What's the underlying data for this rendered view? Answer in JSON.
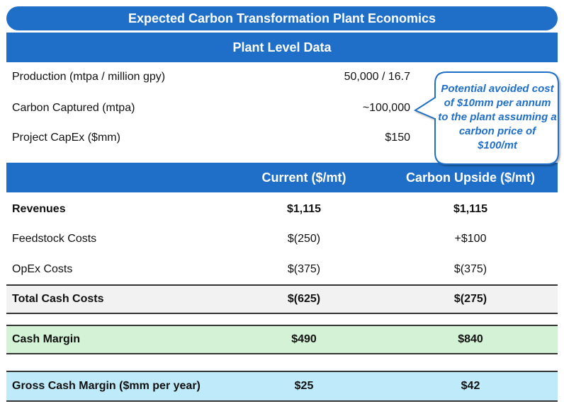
{
  "title": "Expected Carbon Transformation Plant Economics",
  "plant_section": {
    "header": "Plant Level Data",
    "rows": [
      {
        "label": "Production (mtpa / million gpy)",
        "value": "50,000 / 16.7"
      },
      {
        "label": "Carbon Captured (mtpa)",
        "value": "~100,000"
      },
      {
        "label": "Project CapEx ($mm)",
        "value": "$150"
      }
    ]
  },
  "callout": "Potential avoided cost of $10mm per annum to the plant assuming a carbon price of $100/mt",
  "economics": {
    "columns": [
      "",
      "Current ($/mt)",
      "Carbon Upside ($/mt)"
    ],
    "rows": [
      {
        "label": "Revenues",
        "current": "$1,115",
        "upside": "$1,115"
      },
      {
        "label": "Feedstock Costs",
        "current": "$(250)",
        "upside": "+$100"
      },
      {
        "label": "OpEx Costs",
        "current": "$(375)",
        "upside": "$(375)"
      },
      {
        "label": "Total Cash Costs",
        "current": "$(625)",
        "upside": "$(275)"
      },
      {
        "label": "Cash Margin",
        "current": "$490",
        "upside": "$840"
      },
      {
        "label": "Gross Cash Margin ($mm per year)",
        "current": "$25",
        "upside": "$42"
      }
    ]
  },
  "colors": {
    "header_blue": "#1f6fc8",
    "total_row_bg": "#f2f2f2",
    "cash_margin_bg": "#d3f2d6",
    "gross_margin_bg": "#bfeaf9"
  }
}
